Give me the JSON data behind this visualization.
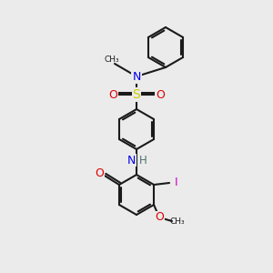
{
  "bg": "#ebebeb",
  "bond_color": "#1a1a1a",
  "bond_lw": 1.5,
  "ring_r": 22,
  "atom_colors": {
    "N": "#0000ee",
    "O": "#dd0000",
    "S": "#cccc00",
    "I": "#cc00cc",
    "H": "#507070",
    "C": "#1a1a1a"
  },
  "font_size": 8.5,
  "dpi": 100
}
